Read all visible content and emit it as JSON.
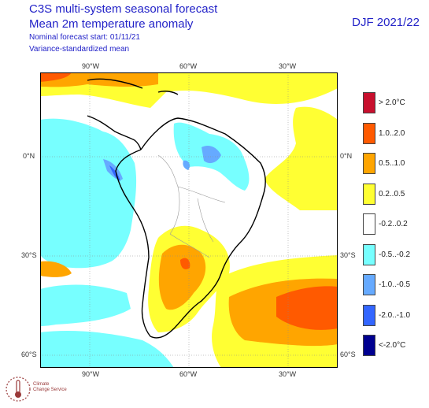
{
  "header": {
    "title_line1": "C3S multi-system seasonal forecast",
    "title_line2": "Mean 2m temperature anomaly",
    "subtitle_line1": "Nominal forecast start: 01/11/21",
    "subtitle_line2": "Variance-standardized mean",
    "season": "DJF 2021/22"
  },
  "axes": {
    "lon_top": [
      "90°W",
      "60°W",
      "30°W"
    ],
    "lon_bottom": [
      "90°W",
      "60°W",
      "30°W"
    ],
    "lat_left": [
      "0°N",
      "30°S",
      "60°S"
    ],
    "lat_right": [
      "0°N",
      "30°S",
      "60°S"
    ]
  },
  "legend": [
    {
      "label": "> 2.0°C",
      "color": "#c8102e"
    },
    {
      "label": "1.0..2.0",
      "color": "#ff5a00"
    },
    {
      "label": "0.5..1.0",
      "color": "#ffa500"
    },
    {
      "label": "0.2..0.5",
      "color": "#ffff33"
    },
    {
      "label": "-0.2..0.2",
      "color": "#ffffff"
    },
    {
      "label": "-0.5..-0.2",
      "color": "#77ffff"
    },
    {
      "label": "-1.0..-0.5",
      "color": "#66aaff"
    },
    {
      "label": "-2.0..-1.0",
      "color": "#3366ff"
    },
    {
      "label": "<-2.0°C",
      "color": "#000090"
    }
  ],
  "logo": {
    "line1": "Climate",
    "line2": "Change Service"
  }
}
